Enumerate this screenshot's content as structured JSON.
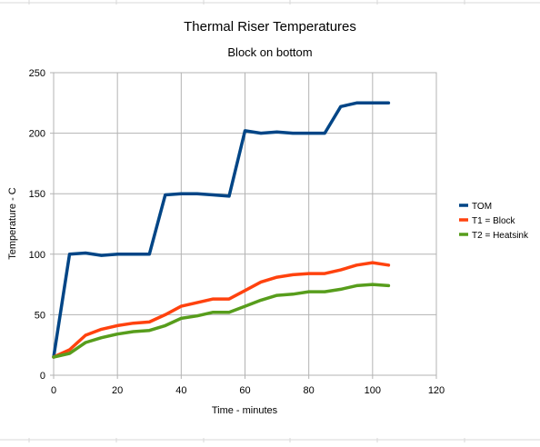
{
  "chart_data": {
    "type": "line",
    "title": "Thermal Riser Temperatures",
    "subtitle": "Block on bottom",
    "xlabel": "Time - minutes",
    "ylabel": "Temperature - C",
    "xlim": [
      0,
      120
    ],
    "ylim": [
      0,
      250
    ],
    "x_ticks": [
      0,
      20,
      40,
      60,
      80,
      100,
      120
    ],
    "y_ticks": [
      0,
      50,
      100,
      150,
      200,
      250
    ],
    "grid": true,
    "legend_position": "right",
    "series": [
      {
        "name": "TOM",
        "color": "#004586",
        "points": [
          [
            0,
            15
          ],
          [
            5,
            100
          ],
          [
            10,
            101
          ],
          [
            15,
            99
          ],
          [
            20,
            100
          ],
          [
            25,
            100
          ],
          [
            30,
            100
          ],
          [
            35,
            149
          ],
          [
            40,
            150
          ],
          [
            45,
            150
          ],
          [
            50,
            149
          ],
          [
            55,
            148
          ],
          [
            60,
            202
          ],
          [
            65,
            200
          ],
          [
            70,
            201
          ],
          [
            75,
            200
          ],
          [
            80,
            200
          ],
          [
            85,
            200
          ],
          [
            90,
            222
          ],
          [
            95,
            225
          ],
          [
            100,
            225
          ],
          [
            105,
            225
          ]
        ]
      },
      {
        "name": "T1 = Block",
        "color": "#ff420e",
        "points": [
          [
            0,
            15
          ],
          [
            5,
            21
          ],
          [
            10,
            33
          ],
          [
            15,
            38
          ],
          [
            20,
            41
          ],
          [
            25,
            43
          ],
          [
            30,
            44
          ],
          [
            35,
            50
          ],
          [
            40,
            57
          ],
          [
            45,
            60
          ],
          [
            50,
            63
          ],
          [
            55,
            63
          ],
          [
            60,
            70
          ],
          [
            65,
            77
          ],
          [
            70,
            81
          ],
          [
            75,
            83
          ],
          [
            80,
            84
          ],
          [
            85,
            84
          ],
          [
            90,
            87
          ],
          [
            95,
            91
          ],
          [
            100,
            93
          ],
          [
            105,
            91
          ]
        ]
      },
      {
        "name": "T2 = Heatsink",
        "color": "#579d1c",
        "points": [
          [
            0,
            15
          ],
          [
            5,
            18
          ],
          [
            10,
            27
          ],
          [
            15,
            31
          ],
          [
            20,
            34
          ],
          [
            25,
            36
          ],
          [
            30,
            37
          ],
          [
            35,
            41
          ],
          [
            40,
            47
          ],
          [
            45,
            49
          ],
          [
            50,
            52
          ],
          [
            55,
            52
          ],
          [
            60,
            57
          ],
          [
            65,
            62
          ],
          [
            70,
            66
          ],
          [
            75,
            67
          ],
          [
            80,
            69
          ],
          [
            85,
            69
          ],
          [
            90,
            71
          ],
          [
            95,
            74
          ],
          [
            100,
            75
          ],
          [
            105,
            74
          ]
        ]
      }
    ]
  }
}
